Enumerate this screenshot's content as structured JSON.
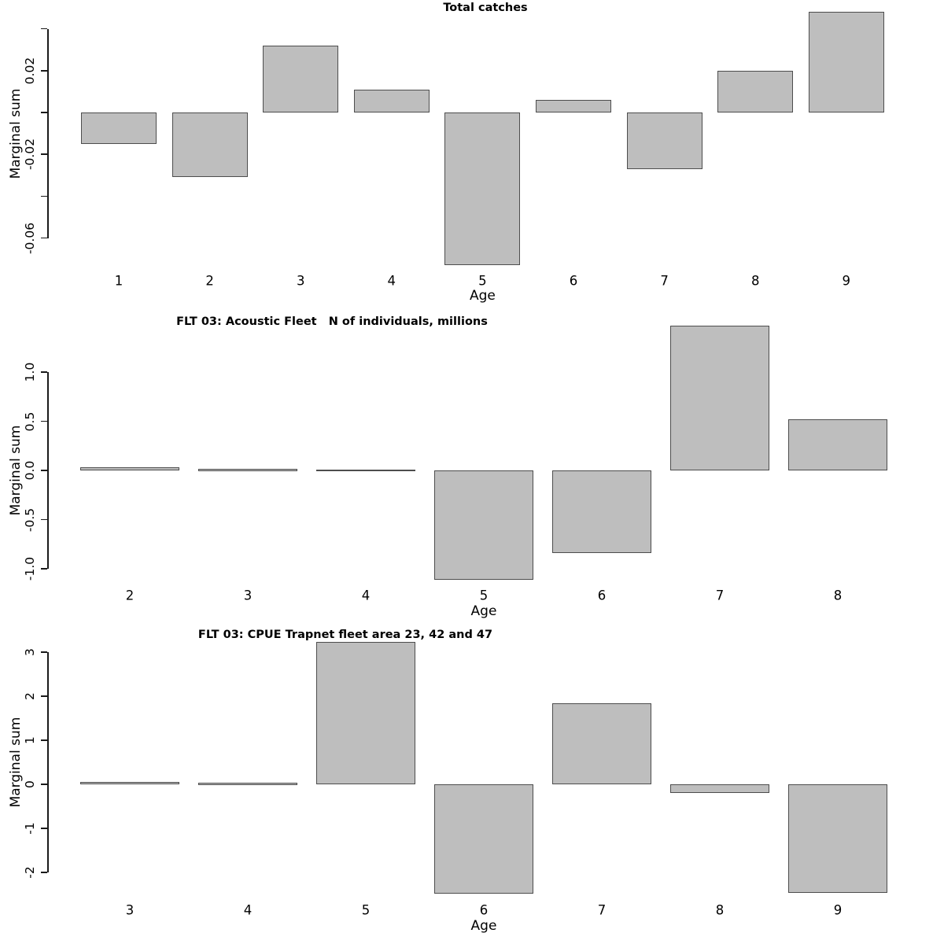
{
  "page": {
    "background": "#ffffff"
  },
  "colors": {
    "bar_fill": "#bebebe",
    "bar_border": "#4d4d4d",
    "axis": "#1a1a1a",
    "text": "#000000"
  },
  "chart_data": [
    {
      "type": "bar",
      "title": "Total catches",
      "xlabel": "Age",
      "ylabel": "Marginal sum",
      "categories": [
        "1",
        "2",
        "3",
        "4",
        "5",
        "6",
        "7",
        "8",
        "9"
      ],
      "values": [
        -0.015,
        -0.031,
        0.032,
        0.011,
        -0.073,
        0.006,
        -0.027,
        0.02,
        0.048
      ],
      "ylim": [
        -0.06,
        0.04
      ],
      "grid": false,
      "legend": "none",
      "yticks": [
        {
          "v": 0.04,
          "label": ""
        },
        {
          "v": 0.02,
          "label": "0.02"
        },
        {
          "v": 0.0,
          "label": ""
        },
        {
          "v": -0.02,
          "label": "-0.02"
        },
        {
          "v": -0.04,
          "label": ""
        },
        {
          "v": -0.06,
          "label": "-0.06"
        }
      ]
    },
    {
      "type": "bar",
      "title": "FLT 03: Acoustic Fleet   N of individuals, millions",
      "xlabel": "Age",
      "ylabel": "Marginal sum",
      "categories": [
        "2",
        "3",
        "4",
        "5",
        "6",
        "7",
        "8"
      ],
      "values": [
        0.03,
        0.015,
        0.01,
        -1.11,
        -0.84,
        1.47,
        0.52
      ],
      "ylim": [
        -1.0,
        1.0
      ],
      "grid": false,
      "legend": "none",
      "yticks": [
        {
          "v": 1.0,
          "label": "1.0"
        },
        {
          "v": 0.5,
          "label": "0.5"
        },
        {
          "v": 0.0,
          "label": "0.0"
        },
        {
          "v": -0.5,
          "label": "-0.5"
        },
        {
          "v": -1.0,
          "label": "-1.0"
        }
      ]
    },
    {
      "type": "bar",
      "title": "FLT 03: CPUE Trapnet fleet area 23, 42 and 47",
      "xlabel": "Age",
      "ylabel": "Marginal sum",
      "categories": [
        "3",
        "4",
        "5",
        "6",
        "7",
        "8",
        "9"
      ],
      "values": [
        0.06,
        0.03,
        3.23,
        -2.48,
        1.84,
        -0.2,
        -2.46
      ],
      "ylim": [
        -2,
        3
      ],
      "grid": false,
      "legend": "none",
      "yticks": [
        {
          "v": 3,
          "label": "3"
        },
        {
          "v": 2,
          "label": "2"
        },
        {
          "v": 1,
          "label": "1"
        },
        {
          "v": 0,
          "label": "0"
        },
        {
          "v": -1,
          "label": "-1"
        },
        {
          "v": -2,
          "label": "-2"
        }
      ]
    }
  ]
}
